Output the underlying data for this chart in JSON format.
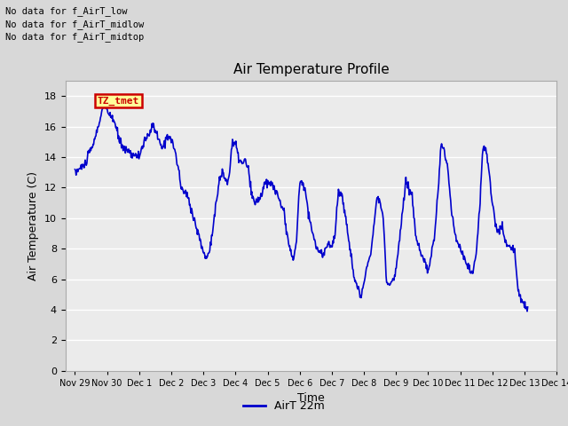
{
  "title": "Air Temperature Profile",
  "xlabel": "Time",
  "ylabel": "Air Temperature (C)",
  "line_color": "#0000cc",
  "line_width": 1.2,
  "ylim": [
    0,
    19
  ],
  "yticks": [
    0,
    2,
    4,
    6,
    8,
    10,
    12,
    14,
    16,
    18
  ],
  "background_color": "#d8d8d8",
  "plot_bg_color": "#ebebeb",
  "grid_color": "#ffffff",
  "legend_label": "AirT 22m",
  "legend_line_color": "#0000cc",
  "annotations": [
    "No data for f_AirT_low",
    "No data for f_AirT_midlow",
    "No data for f_AirT_midtop"
  ],
  "tooltip_text": "TZ_tmet",
  "tooltip_bg": "#ffff99",
  "tooltip_border": "#cc0000",
  "tooltip_text_color": "#cc0000",
  "xtick_labels": [
    "Nov 29",
    "Nov 30",
    "Dec 1",
    "Dec 2",
    "Dec 3",
    "Dec 4",
    "Dec 5",
    "Dec 6",
    "Dec 7",
    "Dec 8",
    "Dec 9",
    "Dec 10",
    "Dec 11",
    "Dec 12",
    "Dec 13",
    "Dec 14"
  ],
  "control_points": [
    [
      0.0,
      13.0
    ],
    [
      0.3,
      13.5
    ],
    [
      0.6,
      15.0
    ],
    [
      0.9,
      17.5
    ],
    [
      1.0,
      17.0
    ],
    [
      1.2,
      16.5
    ],
    [
      1.4,
      15.0
    ],
    [
      1.6,
      14.5
    ],
    [
      1.8,
      14.2
    ],
    [
      2.0,
      14.0
    ],
    [
      2.1,
      14.8
    ],
    [
      2.2,
      15.0
    ],
    [
      2.3,
      15.5
    ],
    [
      2.4,
      16.0
    ],
    [
      2.5,
      15.8
    ],
    [
      2.6,
      15.2
    ],
    [
      2.7,
      14.5
    ],
    [
      2.8,
      15.0
    ],
    [
      2.9,
      15.5
    ],
    [
      3.0,
      15.2
    ],
    [
      3.1,
      14.5
    ],
    [
      3.2,
      13.5
    ],
    [
      3.3,
      12.0
    ],
    [
      3.5,
      11.5
    ],
    [
      3.7,
      10.0
    ],
    [
      3.9,
      8.5
    ],
    [
      4.0,
      7.8
    ],
    [
      4.1,
      7.3
    ],
    [
      4.2,
      8.0
    ],
    [
      4.3,
      9.5
    ],
    [
      4.4,
      11.0
    ],
    [
      4.5,
      12.5
    ],
    [
      4.6,
      13.0
    ],
    [
      4.7,
      12.5
    ],
    [
      4.75,
      12.3
    ],
    [
      4.8,
      12.8
    ],
    [
      4.9,
      15.0
    ],
    [
      5.0,
      14.8
    ],
    [
      5.1,
      14.0
    ],
    [
      5.2,
      13.5
    ],
    [
      5.3,
      13.8
    ],
    [
      5.4,
      13.2
    ],
    [
      5.5,
      11.5
    ],
    [
      5.6,
      11.0
    ],
    [
      5.7,
      11.2
    ],
    [
      5.8,
      11.5
    ],
    [
      5.9,
      12.2
    ],
    [
      6.0,
      12.3
    ],
    [
      6.1,
      12.2
    ],
    [
      6.2,
      12.1
    ],
    [
      6.3,
      11.5
    ],
    [
      6.4,
      11.0
    ],
    [
      6.5,
      10.5
    ],
    [
      6.6,
      9.0
    ],
    [
      6.7,
      8.0
    ],
    [
      6.8,
      7.2
    ],
    [
      6.9,
      8.5
    ],
    [
      7.0,
      12.5
    ],
    [
      7.1,
      12.3
    ],
    [
      7.2,
      11.5
    ],
    [
      7.3,
      10.0
    ],
    [
      7.4,
      9.0
    ],
    [
      7.5,
      8.2
    ],
    [
      7.6,
      7.8
    ],
    [
      7.7,
      7.5
    ],
    [
      7.8,
      8.0
    ],
    [
      7.9,
      8.5
    ],
    [
      8.0,
      8.0
    ],
    [
      8.1,
      9.0
    ],
    [
      8.2,
      11.8
    ],
    [
      8.3,
      11.5
    ],
    [
      8.4,
      10.5
    ],
    [
      8.5,
      9.0
    ],
    [
      8.6,
      7.5
    ],
    [
      8.7,
      6.0
    ],
    [
      8.8,
      5.5
    ],
    [
      8.9,
      4.7
    ],
    [
      9.0,
      5.8
    ],
    [
      9.1,
      7.0
    ],
    [
      9.2,
      7.5
    ],
    [
      9.3,
      9.5
    ],
    [
      9.4,
      11.5
    ],
    [
      9.5,
      11.0
    ],
    [
      9.6,
      10.0
    ],
    [
      9.7,
      5.8
    ],
    [
      9.8,
      5.6
    ],
    [
      10.0,
      6.5
    ],
    [
      10.1,
      8.5
    ],
    [
      10.2,
      10.5
    ],
    [
      10.3,
      12.3
    ],
    [
      10.4,
      12.0
    ],
    [
      10.5,
      11.5
    ],
    [
      10.6,
      9.0
    ],
    [
      10.7,
      8.0
    ],
    [
      10.8,
      7.5
    ],
    [
      10.9,
      7.0
    ],
    [
      11.0,
      6.5
    ],
    [
      11.1,
      7.5
    ],
    [
      11.2,
      9.0
    ],
    [
      11.3,
      11.5
    ],
    [
      11.4,
      14.7
    ],
    [
      11.5,
      14.5
    ],
    [
      11.6,
      13.5
    ],
    [
      11.7,
      11.0
    ],
    [
      11.8,
      9.5
    ],
    [
      11.9,
      8.5
    ],
    [
      12.0,
      8.0
    ],
    [
      12.1,
      7.5
    ],
    [
      12.2,
      7.0
    ],
    [
      12.3,
      6.5
    ],
    [
      12.4,
      6.3
    ],
    [
      12.5,
      8.0
    ],
    [
      12.6,
      10.5
    ],
    [
      12.7,
      14.7
    ],
    [
      12.8,
      14.5
    ],
    [
      12.9,
      13.0
    ],
    [
      13.0,
      11.0
    ],
    [
      13.1,
      9.5
    ],
    [
      13.2,
      9.0
    ],
    [
      13.3,
      9.5
    ],
    [
      13.4,
      8.5
    ],
    [
      13.5,
      8.3
    ],
    [
      13.6,
      8.0
    ],
    [
      13.7,
      7.8
    ],
    [
      13.8,
      5.2
    ],
    [
      13.9,
      4.8
    ],
    [
      14.0,
      4.2
    ],
    [
      14.1,
      4.1
    ]
  ]
}
